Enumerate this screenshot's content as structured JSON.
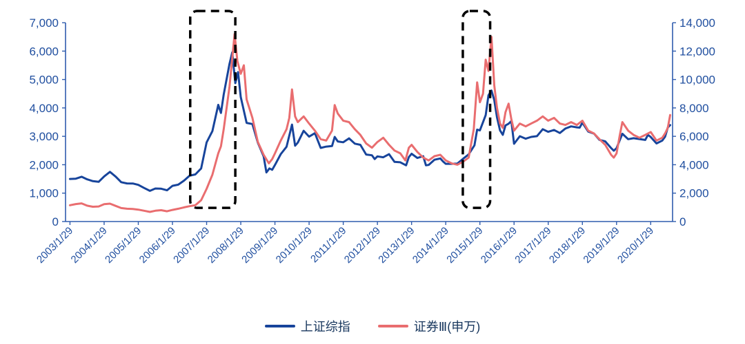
{
  "chart_data": {
    "type": "line",
    "title": "",
    "xlabel": "",
    "ylabel_left": "",
    "ylabel_right": "",
    "grid": false,
    "legend_position": "bottom-center",
    "colors": {
      "axis_line": "#2f5cae",
      "axis_text": "#1f4e9f",
      "series_left": "#17449b",
      "series_right": "#e96d6f",
      "highlight_box": "#000000",
      "legend_text": "#17365d"
    },
    "left_axis": {
      "min": 0,
      "max": 7000,
      "step": 1000
    },
    "right_axis": {
      "min": 0,
      "max": 14000,
      "step": 2000
    },
    "x_tick_labels": [
      "2003/1/29",
      "2004/1/29",
      "2005/1/29",
      "2006/1/29",
      "2007/1/29",
      "2008/1/29",
      "2009/1/29",
      "2010/1/29",
      "2011/1/29",
      "2012/1/29",
      "2013/1/29",
      "2014/1/29",
      "2015/1/29",
      "2016/1/29",
      "2017/1/29",
      "2018/1/29",
      "2019/1/29",
      "2020/1/29"
    ],
    "x_range": [
      2002.95,
      2020.72
    ],
    "highlight_boxes": [
      {
        "x_start": 2006.6,
        "x_end": 2007.92,
        "y_bottom_left_axis": 480
      },
      {
        "x_start": 2014.58,
        "x_end": 2015.38,
        "y_bottom_left_axis": 480
      }
    ],
    "series": [
      {
        "name": "上证综指",
        "axis": "left",
        "color": "#17449b",
        "points": [
          [
            2003.08,
            1499
          ],
          [
            2003.25,
            1510
          ],
          [
            2003.42,
            1576
          ],
          [
            2003.58,
            1486
          ],
          [
            2003.75,
            1421
          ],
          [
            2003.92,
            1397
          ],
          [
            2004.08,
            1590
          ],
          [
            2004.25,
            1750
          ],
          [
            2004.42,
            1580
          ],
          [
            2004.58,
            1386
          ],
          [
            2004.75,
            1342
          ],
          [
            2004.92,
            1340
          ],
          [
            2005.08,
            1290
          ],
          [
            2005.25,
            1181
          ],
          [
            2005.42,
            1081
          ],
          [
            2005.58,
            1162
          ],
          [
            2005.75,
            1155
          ],
          [
            2005.92,
            1099
          ],
          [
            2006.08,
            1258
          ],
          [
            2006.25,
            1298
          ],
          [
            2006.42,
            1441
          ],
          [
            2006.58,
            1612
          ],
          [
            2006.75,
            1658
          ],
          [
            2006.92,
            1869
          ],
          [
            2007.08,
            2786
          ],
          [
            2007.25,
            3183
          ],
          [
            2007.42,
            4109
          ],
          [
            2007.5,
            3821
          ],
          [
            2007.58,
            4471
          ],
          [
            2007.75,
            5552
          ],
          [
            2007.83,
            5955
          ],
          [
            2007.92,
            4872
          ],
          [
            2008.0,
            5262
          ],
          [
            2008.08,
            4383
          ],
          [
            2008.25,
            3473
          ],
          [
            2008.42,
            3433
          ],
          [
            2008.58,
            2776
          ],
          [
            2008.75,
            2294
          ],
          [
            2008.83,
            1729
          ],
          [
            2008.92,
            1871
          ],
          [
            2009.0,
            1821
          ],
          [
            2009.08,
            1991
          ],
          [
            2009.25,
            2373
          ],
          [
            2009.42,
            2633
          ],
          [
            2009.58,
            3412
          ],
          [
            2009.67,
            2668
          ],
          [
            2009.75,
            2779
          ],
          [
            2009.92,
            3195
          ],
          [
            2010.08,
            2989
          ],
          [
            2010.25,
            3109
          ],
          [
            2010.42,
            2592
          ],
          [
            2010.58,
            2638
          ],
          [
            2010.75,
            2656
          ],
          [
            2010.83,
            2979
          ],
          [
            2010.92,
            2820
          ],
          [
            2011.08,
            2790
          ],
          [
            2011.25,
            2928
          ],
          [
            2011.42,
            2743
          ],
          [
            2011.58,
            2701
          ],
          [
            2011.75,
            2359
          ],
          [
            2011.92,
            2333
          ],
          [
            2012.0,
            2199
          ],
          [
            2012.08,
            2293
          ],
          [
            2012.25,
            2263
          ],
          [
            2012.42,
            2372
          ],
          [
            2012.58,
            2103
          ],
          [
            2012.75,
            2086
          ],
          [
            2012.92,
            1980
          ],
          [
            2013.0,
            2269
          ],
          [
            2013.08,
            2385
          ],
          [
            2013.25,
            2237
          ],
          [
            2013.42,
            2301
          ],
          [
            2013.5,
            1979
          ],
          [
            2013.58,
            1994
          ],
          [
            2013.75,
            2175
          ],
          [
            2013.92,
            2221
          ],
          [
            2014.0,
            2116
          ],
          [
            2014.08,
            2033
          ],
          [
            2014.25,
            2033
          ],
          [
            2014.42,
            2039
          ],
          [
            2014.58,
            2201
          ],
          [
            2014.75,
            2364
          ],
          [
            2014.92,
            2683
          ],
          [
            2015.0,
            3235
          ],
          [
            2015.08,
            3210
          ],
          [
            2015.25,
            3748
          ],
          [
            2015.33,
            4442
          ],
          [
            2015.42,
            4612
          ],
          [
            2015.5,
            4277
          ],
          [
            2015.58,
            3664
          ],
          [
            2015.67,
            3206
          ],
          [
            2015.75,
            3053
          ],
          [
            2015.83,
            3383
          ],
          [
            2015.92,
            3445
          ],
          [
            2016.0,
            3539
          ],
          [
            2016.08,
            2738
          ],
          [
            2016.25,
            3004
          ],
          [
            2016.42,
            2917
          ],
          [
            2016.58,
            2979
          ],
          [
            2016.75,
            3005
          ],
          [
            2016.92,
            3250
          ],
          [
            2017.08,
            3159
          ],
          [
            2017.25,
            3223
          ],
          [
            2017.42,
            3117
          ],
          [
            2017.58,
            3273
          ],
          [
            2017.75,
            3349
          ],
          [
            2017.92,
            3317
          ],
          [
            2018.0,
            3307
          ],
          [
            2018.08,
            3481
          ],
          [
            2018.25,
            3169
          ],
          [
            2018.42,
            3095
          ],
          [
            2018.58,
            2876
          ],
          [
            2018.75,
            2821
          ],
          [
            2018.92,
            2588
          ],
          [
            2019.0,
            2494
          ],
          [
            2019.08,
            2585
          ],
          [
            2019.25,
            3091
          ],
          [
            2019.42,
            2899
          ],
          [
            2019.58,
            2933
          ],
          [
            2019.75,
            2905
          ],
          [
            2019.92,
            2872
          ],
          [
            2020.0,
            3050
          ],
          [
            2020.08,
            2977
          ],
          [
            2020.25,
            2750
          ],
          [
            2020.42,
            2852
          ],
          [
            2020.5,
            2985
          ],
          [
            2020.58,
            3310
          ],
          [
            2020.65,
            3396
          ]
        ]
      },
      {
        "name": "证券Ⅲ(申万)",
        "axis": "right",
        "color": "#e96d6f",
        "points": [
          [
            2003.08,
            1150
          ],
          [
            2003.25,
            1230
          ],
          [
            2003.42,
            1280
          ],
          [
            2003.58,
            1120
          ],
          [
            2003.75,
            1040
          ],
          [
            2003.92,
            1060
          ],
          [
            2004.08,
            1220
          ],
          [
            2004.25,
            1260
          ],
          [
            2004.42,
            1100
          ],
          [
            2004.58,
            950
          ],
          [
            2004.75,
            900
          ],
          [
            2004.92,
            880
          ],
          [
            2005.08,
            840
          ],
          [
            2005.25,
            760
          ],
          [
            2005.42,
            680
          ],
          [
            2005.58,
            760
          ],
          [
            2005.75,
            800
          ],
          [
            2005.92,
            720
          ],
          [
            2006.08,
            820
          ],
          [
            2006.25,
            900
          ],
          [
            2006.42,
            1000
          ],
          [
            2006.58,
            1080
          ],
          [
            2006.75,
            1150
          ],
          [
            2006.92,
            1500
          ],
          [
            2007.08,
            2300
          ],
          [
            2007.25,
            3300
          ],
          [
            2007.42,
            4800
          ],
          [
            2007.5,
            5300
          ],
          [
            2007.58,
            6500
          ],
          [
            2007.75,
            9500
          ],
          [
            2007.83,
            11500
          ],
          [
            2007.9,
            13200
          ],
          [
            2007.98,
            11300
          ],
          [
            2008.08,
            10400
          ],
          [
            2008.17,
            11000
          ],
          [
            2008.25,
            8600
          ],
          [
            2008.42,
            7300
          ],
          [
            2008.58,
            5600
          ],
          [
            2008.75,
            4700
          ],
          [
            2008.9,
            4100
          ],
          [
            2009.0,
            4400
          ],
          [
            2009.08,
            4800
          ],
          [
            2009.25,
            5700
          ],
          [
            2009.42,
            6500
          ],
          [
            2009.5,
            7300
          ],
          [
            2009.58,
            9300
          ],
          [
            2009.67,
            7400
          ],
          [
            2009.75,
            7000
          ],
          [
            2009.92,
            7400
          ],
          [
            2010.08,
            6900
          ],
          [
            2010.25,
            6400
          ],
          [
            2010.42,
            5800
          ],
          [
            2010.58,
            5700
          ],
          [
            2010.75,
            6400
          ],
          [
            2010.83,
            8200
          ],
          [
            2010.92,
            7600
          ],
          [
            2011.08,
            7100
          ],
          [
            2011.25,
            7000
          ],
          [
            2011.42,
            6500
          ],
          [
            2011.58,
            6100
          ],
          [
            2011.75,
            5500
          ],
          [
            2011.92,
            5200
          ],
          [
            2012.08,
            5600
          ],
          [
            2012.25,
            5900
          ],
          [
            2012.42,
            5400
          ],
          [
            2012.58,
            5000
          ],
          [
            2012.75,
            4800
          ],
          [
            2012.9,
            4300
          ],
          [
            2013.0,
            5200
          ],
          [
            2013.08,
            5400
          ],
          [
            2013.25,
            4900
          ],
          [
            2013.42,
            4500
          ],
          [
            2013.58,
            4300
          ],
          [
            2013.75,
            4600
          ],
          [
            2013.92,
            4700
          ],
          [
            2014.08,
            4300
          ],
          [
            2014.25,
            4100
          ],
          [
            2014.42,
            4000
          ],
          [
            2014.58,
            4200
          ],
          [
            2014.75,
            4500
          ],
          [
            2014.9,
            6500
          ],
          [
            2015.0,
            9800
          ],
          [
            2015.08,
            8400
          ],
          [
            2015.17,
            9000
          ],
          [
            2015.25,
            11400
          ],
          [
            2015.33,
            10600
          ],
          [
            2015.42,
            13000
          ],
          [
            2015.5,
            9600
          ],
          [
            2015.58,
            8000
          ],
          [
            2015.67,
            6900
          ],
          [
            2015.75,
            6600
          ],
          [
            2015.83,
            7700
          ],
          [
            2015.92,
            8300
          ],
          [
            2016.0,
            7200
          ],
          [
            2016.08,
            6400
          ],
          [
            2016.25,
            6900
          ],
          [
            2016.42,
            6700
          ],
          [
            2016.58,
            6900
          ],
          [
            2016.75,
            7100
          ],
          [
            2016.92,
            7400
          ],
          [
            2017.08,
            7100
          ],
          [
            2017.25,
            7300
          ],
          [
            2017.42,
            6900
          ],
          [
            2017.58,
            6800
          ],
          [
            2017.75,
            7000
          ],
          [
            2017.92,
            6800
          ],
          [
            2018.08,
            7100
          ],
          [
            2018.25,
            6400
          ],
          [
            2018.42,
            6200
          ],
          [
            2018.58,
            5800
          ],
          [
            2018.75,
            5400
          ],
          [
            2018.92,
            4700
          ],
          [
            2019.0,
            4500
          ],
          [
            2019.08,
            4800
          ],
          [
            2019.17,
            6000
          ],
          [
            2019.25,
            7000
          ],
          [
            2019.42,
            6400
          ],
          [
            2019.58,
            6100
          ],
          [
            2019.75,
            5900
          ],
          [
            2019.92,
            6100
          ],
          [
            2020.08,
            6300
          ],
          [
            2020.25,
            5700
          ],
          [
            2020.42,
            5900
          ],
          [
            2020.5,
            6200
          ],
          [
            2020.58,
            6600
          ],
          [
            2020.65,
            7500
          ]
        ]
      }
    ]
  }
}
